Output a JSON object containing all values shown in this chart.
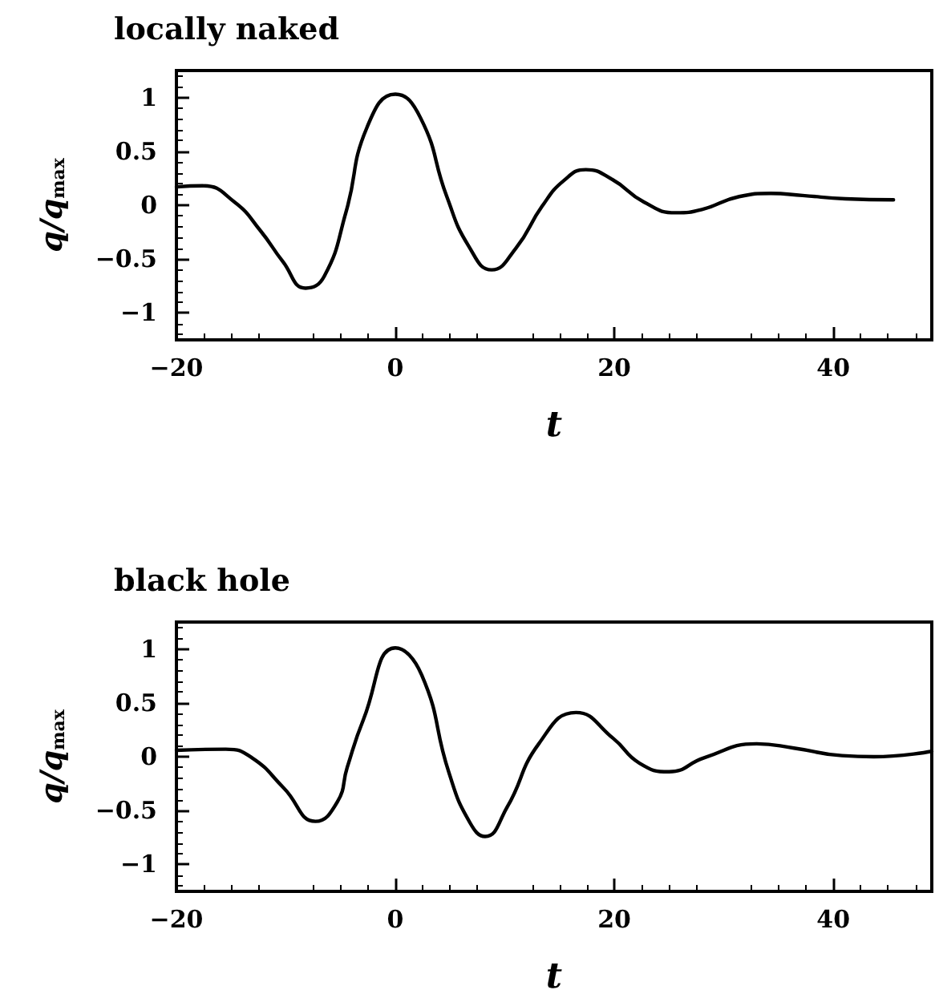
{
  "chart_data": [
    {
      "type": "line",
      "title": "locally naked",
      "xlabel": "t",
      "ylabel": "q/q$_{max}$",
      "grid": false,
      "marker": "none",
      "line_style": "solid",
      "xlim": [
        -20,
        49
      ],
      "xticks": [
        -20,
        0,
        20,
        40
      ],
      "ylim": [
        -1.25,
        1.25
      ],
      "yticks": [
        -1,
        -0.5,
        0,
        0.5,
        1
      ],
      "series": [
        {
          "color": "#000000",
          "x": [
            -20,
            -17.6,
            -14.7,
            -12.3,
            -10.3,
            -8.2,
            -6.5,
            -4.5,
            -2.6,
            0,
            2.3,
            4.7,
            6.7,
            8.8,
            11,
            13.4,
            15.4,
            17.4,
            19.8,
            22.7,
            25.6,
            28,
            31.4,
            34.3,
            37.2,
            41.1,
            45.5
          ],
          "values": [
            0.17,
            0.18,
            0.03,
            -0.24,
            -0.52,
            -0.77,
            -0.66,
            -0.06,
            0.72,
            1.03,
            0.81,
            0.08,
            -0.38,
            -0.6,
            -0.4,
            -0.01,
            0.23,
            0.33,
            0.24,
            0.03,
            -0.07,
            -0.04,
            0.08,
            0.11,
            0.09,
            0.06,
            0.05
          ]
        }
      ]
    },
    {
      "type": "line",
      "title": "black hole",
      "xlabel": "t",
      "ylabel": "q/q$_{max}$",
      "grid": false,
      "marker": "none",
      "line_style": "solid",
      "xlim": [
        -20,
        49
      ],
      "xticks": [
        -20,
        0,
        20,
        40
      ],
      "ylim": [
        -1.25,
        1.25
      ],
      "yticks": [
        -1,
        -0.5,
        0,
        0.5,
        1
      ],
      "series": [
        {
          "color": "#000000",
          "x": [
            -20,
            -15.5,
            -13.1,
            -10.2,
            -7.3,
            -5.3,
            -4.4,
            -2.9,
            0,
            2.4,
            4.9,
            6.8,
            8.2,
            10.2,
            13.1,
            16.5,
            19.9,
            22.3,
            25,
            28.2,
            33,
            36.4,
            40.8,
            43.7,
            49
          ],
          "values": [
            0.06,
            0.07,
            -0.01,
            -0.29,
            -0.6,
            -0.42,
            -0.1,
            0.35,
            1.01,
            0.76,
            -0.15,
            -0.61,
            -0.74,
            -0.47,
            0.12,
            0.41,
            0.17,
            -0.06,
            -0.14,
            -0.01,
            0.12,
            0.08,
            0.01,
            0.0,
            0.05
          ]
        }
      ]
    }
  ]
}
